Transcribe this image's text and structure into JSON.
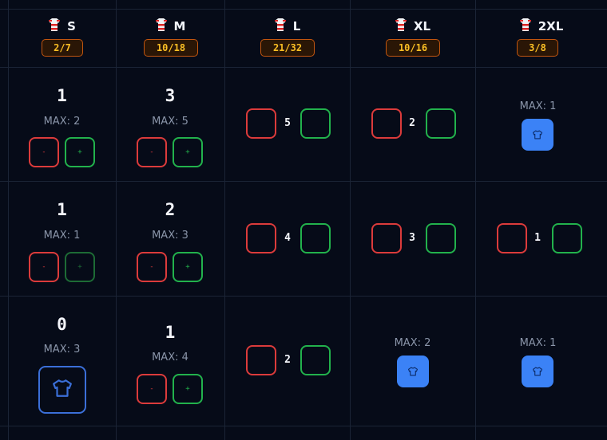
{
  "headers": [
    {
      "label": "S",
      "badge": "2/7"
    },
    {
      "label": "M",
      "badge": "10/18"
    },
    {
      "label": "L",
      "badge": "21/32"
    },
    {
      "label": "XL",
      "badge": "10/16"
    },
    {
      "label": "2XL",
      "badge": "3/8"
    }
  ],
  "rows": [
    {
      "s": {
        "count": "1",
        "max": "MAX: 2",
        "minus": "-",
        "plus": "+"
      },
      "m": {
        "count": "3",
        "max": "MAX: 5",
        "minus": "-",
        "plus": "+"
      },
      "l": {
        "count": "5"
      },
      "xl": {
        "count": "2"
      },
      "xxl": {
        "max": "MAX: 1"
      }
    },
    {
      "s": {
        "count": "1",
        "max": "MAX: 1",
        "minus": "-",
        "plus": "+"
      },
      "m": {
        "count": "2",
        "max": "MAX: 3",
        "minus": "-",
        "plus": "+"
      },
      "l": {
        "count": "4"
      },
      "xl": {
        "count": "3"
      },
      "xxl": {
        "count": "1"
      }
    },
    {
      "s": {
        "count": "0",
        "max": "MAX: 3"
      },
      "m": {
        "count": "1",
        "max": "MAX: 4",
        "minus": "-",
        "plus": "+"
      },
      "l": {
        "count": "2"
      },
      "xl": {
        "max": "MAX: 2"
      },
      "xxl": {
        "max": "MAX: 1"
      }
    }
  ],
  "icons": {
    "header": "jersey-icon",
    "shirt": "tshirt-icon"
  },
  "colors": {
    "background": "#060b18",
    "minus": "#dc3b3b",
    "plus": "#22b24c",
    "accent": "#3b82f6",
    "badge_text": "#fbbf24"
  }
}
